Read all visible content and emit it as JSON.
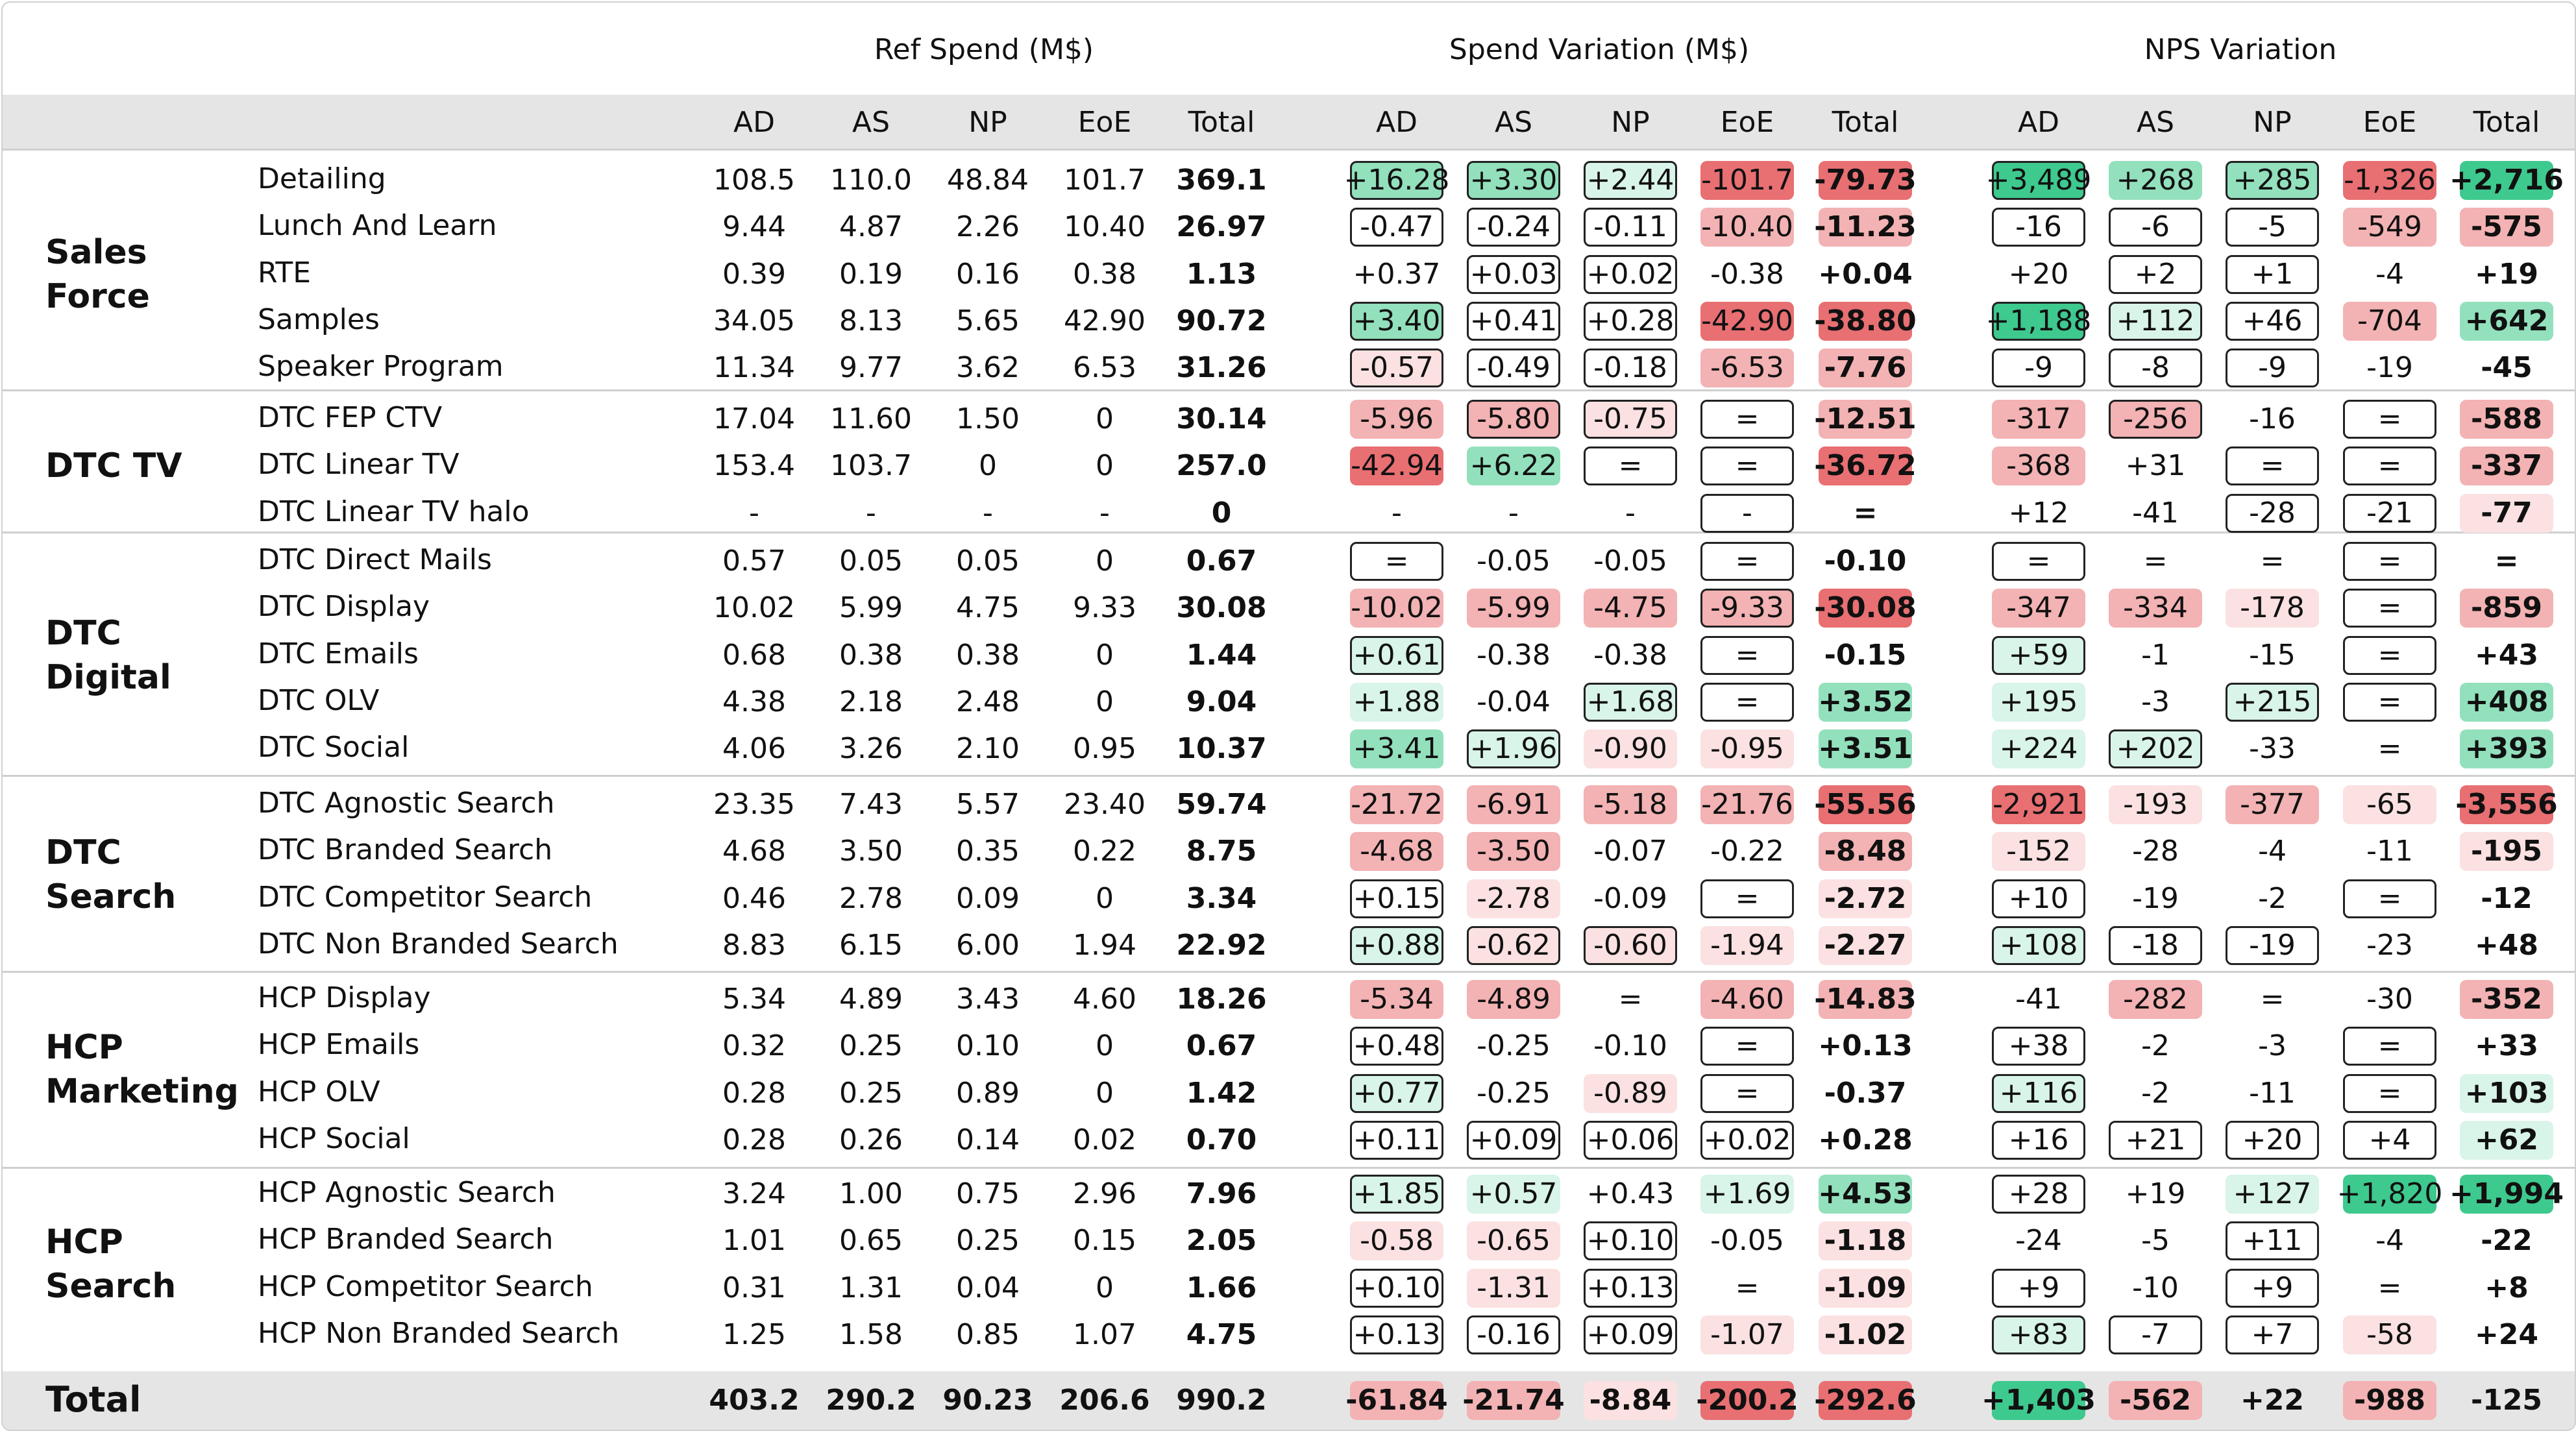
{
  "chart_data": {
    "type": "table",
    "group_headers": [
      "Ref Spend (M$)",
      "Spend Variation (M$)",
      "NPS Variation"
    ],
    "column_headers": [
      "AD",
      "AS",
      "NP",
      "EoE",
      "Total"
    ],
    "groups": [
      {
        "name": "Sales Force",
        "lines": [
          "Sales",
          "Force"
        ],
        "rows": [
          {
            "channel": "Detailing",
            "ref": [
              "108.5",
              "110.0",
              "48.84",
              "101.7",
              "369.1"
            ],
            "spend": [
              "+16.28",
              "+3.30",
              "+2.44",
              "-101.7",
              "-79.73"
            ],
            "nps": [
              "+3,489",
              "+268",
              "+285",
              "-1,326",
              "+2,716"
            ]
          },
          {
            "channel": "Lunch And Learn",
            "ref": [
              "9.44",
              "4.87",
              "2.26",
              "10.40",
              "26.97"
            ],
            "spend": [
              "-0.47",
              "-0.24",
              "-0.11",
              "-10.40",
              "-11.23"
            ],
            "nps": [
              "-16",
              "-6",
              "-5",
              "-549",
              "-575"
            ]
          },
          {
            "channel": "RTE",
            "ref": [
              "0.39",
              "0.19",
              "0.16",
              "0.38",
              "1.13"
            ],
            "spend": [
              "+0.37",
              "+0.03",
              "+0.02",
              "-0.38",
              "+0.04"
            ],
            "nps": [
              "+20",
              "+2",
              "+1",
              "-4",
              "+19"
            ]
          },
          {
            "channel": "Samples",
            "ref": [
              "34.05",
              "8.13",
              "5.65",
              "42.90",
              "90.72"
            ],
            "spend": [
              "+3.40",
              "+0.41",
              "+0.28",
              "-42.90",
              "-38.80"
            ],
            "nps": [
              "+1,188",
              "+112",
              "+46",
              "-704",
              "+642"
            ]
          },
          {
            "channel": "Speaker Program",
            "ref": [
              "11.34",
              "9.77",
              "3.62",
              "6.53",
              "31.26"
            ],
            "spend": [
              "-0.57",
              "-0.49",
              "-0.18",
              "-6.53",
              "-7.76"
            ],
            "nps": [
              "-9",
              "-8",
              "-9",
              "-19",
              "-45"
            ]
          }
        ]
      },
      {
        "name": "DTC TV",
        "lines": [
          "DTC TV"
        ],
        "rows": [
          {
            "channel": "DTC FEP CTV",
            "ref": [
              "17.04",
              "11.60",
              "1.50",
              "0",
              "30.14"
            ],
            "spend": [
              "-5.96",
              "-5.80",
              "-0.75",
              "=",
              "-12.51"
            ],
            "nps": [
              "-317",
              "-256",
              "-16",
              "=",
              "-588"
            ]
          },
          {
            "channel": "DTC Linear TV",
            "ref": [
              "153.4",
              "103.7",
              "0",
              "0",
              "257.0"
            ],
            "spend": [
              "-42.94",
              "+6.22",
              "=",
              "=",
              "-36.72"
            ],
            "nps": [
              "-368",
              "+31",
              "=",
              "=",
              "-337"
            ]
          },
          {
            "channel": "DTC Linear TV halo",
            "ref": [
              "-",
              "-",
              "-",
              "-",
              "0"
            ],
            "spend": [
              "-",
              "-",
              "-",
              "-",
              "="
            ],
            "nps": [
              "+12",
              "-41",
              "-28",
              "-21",
              "-77"
            ]
          }
        ]
      },
      {
        "name": "DTC Digital",
        "lines": [
          "DTC",
          "Digital"
        ],
        "rows": [
          {
            "channel": "DTC Direct Mails",
            "ref": [
              "0.57",
              "0.05",
              "0.05",
              "0",
              "0.67"
            ],
            "spend": [
              "=",
              "-0.05",
              "-0.05",
              "=",
              "-0.10"
            ],
            "nps": [
              "=",
              "=",
              "=",
              "=",
              "="
            ]
          },
          {
            "channel": "DTC Display",
            "ref": [
              "10.02",
              "5.99",
              "4.75",
              "9.33",
              "30.08"
            ],
            "spend": [
              "-10.02",
              "-5.99",
              "-4.75",
              "-9.33",
              "-30.08"
            ],
            "nps": [
              "-347",
              "-334",
              "-178",
              "=",
              "-859"
            ]
          },
          {
            "channel": "DTC Emails",
            "ref": [
              "0.68",
              "0.38",
              "0.38",
              "0",
              "1.44"
            ],
            "spend": [
              "+0.61",
              "-0.38",
              "-0.38",
              "=",
              "-0.15"
            ],
            "nps": [
              "+59",
              "-1",
              "-15",
              "=",
              "+43"
            ]
          },
          {
            "channel": "DTC OLV",
            "ref": [
              "4.38",
              "2.18",
              "2.48",
              "0",
              "9.04"
            ],
            "spend": [
              "+1.88",
              "-0.04",
              "+1.68",
              "=",
              "+3.52"
            ],
            "nps": [
              "+195",
              "-3",
              "+215",
              "=",
              "+408"
            ]
          },
          {
            "channel": "DTC Social",
            "ref": [
              "4.06",
              "3.26",
              "2.10",
              "0.95",
              "10.37"
            ],
            "spend": [
              "+3.41",
              "+1.96",
              "-0.90",
              "-0.95",
              "+3.51"
            ],
            "nps": [
              "+224",
              "+202",
              "-33",
              "=",
              "+393"
            ]
          }
        ]
      },
      {
        "name": "DTC Search",
        "lines": [
          "DTC",
          "Search"
        ],
        "rows": [
          {
            "channel": "DTC Agnostic Search",
            "ref": [
              "23.35",
              "7.43",
              "5.57",
              "23.40",
              "59.74"
            ],
            "spend": [
              "-21.72",
              "-6.91",
              "-5.18",
              "-21.76",
              "-55.56"
            ],
            "nps": [
              "-2,921",
              "-193",
              "-377",
              "-65",
              "-3,556"
            ]
          },
          {
            "channel": "DTC Branded Search",
            "ref": [
              "4.68",
              "3.50",
              "0.35",
              "0.22",
              "8.75"
            ],
            "spend": [
              "-4.68",
              "-3.50",
              "-0.07",
              "-0.22",
              "-8.48"
            ],
            "nps": [
              "-152",
              "-28",
              "-4",
              "-11",
              "-195"
            ]
          },
          {
            "channel": "DTC Competitor Search",
            "ref": [
              "0.46",
              "2.78",
              "0.09",
              "0",
              "3.34"
            ],
            "spend": [
              "+0.15",
              "-2.78",
              "-0.09",
              "=",
              "-2.72"
            ],
            "nps": [
              "+10",
              "-19",
              "-2",
              "=",
              "-12"
            ]
          },
          {
            "channel": "DTC Non Branded Search",
            "ref": [
              "8.83",
              "6.15",
              "6.00",
              "1.94",
              "22.92"
            ],
            "spend": [
              "+0.88",
              "-0.62",
              "-0.60",
              "-1.94",
              "-2.27"
            ],
            "nps": [
              "+108",
              "-18",
              "-19",
              "-23",
              "+48"
            ]
          }
        ]
      },
      {
        "name": "HCP Marketing",
        "lines": [
          "HCP",
          "Marketing"
        ],
        "rows": [
          {
            "channel": "HCP Display",
            "ref": [
              "5.34",
              "4.89",
              "3.43",
              "4.60",
              "18.26"
            ],
            "spend": [
              "-5.34",
              "-4.89",
              "=",
              "-4.60",
              "-14.83"
            ],
            "nps": [
              "-41",
              "-282",
              "=",
              "-30",
              "-352"
            ]
          },
          {
            "channel": "HCP Emails",
            "ref": [
              "0.32",
              "0.25",
              "0.10",
              "0",
              "0.67"
            ],
            "spend": [
              "+0.48",
              "-0.25",
              "-0.10",
              "=",
              "+0.13"
            ],
            "nps": [
              "+38",
              "-2",
              "-3",
              "=",
              "+33"
            ]
          },
          {
            "channel": "HCP OLV",
            "ref": [
              "0.28",
              "0.25",
              "0.89",
              "0",
              "1.42"
            ],
            "spend": [
              "+0.77",
              "-0.25",
              "-0.89",
              "=",
              "-0.37"
            ],
            "nps": [
              "+116",
              "-2",
              "-11",
              "=",
              "+103"
            ]
          },
          {
            "channel": "HCP Social",
            "ref": [
              "0.28",
              "0.26",
              "0.14",
              "0.02",
              "0.70"
            ],
            "spend": [
              "+0.11",
              "+0.09",
              "+0.06",
              "+0.02",
              "+0.28"
            ],
            "nps": [
              "+16",
              "+21",
              "+20",
              "+4",
              "+62"
            ]
          }
        ]
      },
      {
        "name": "HCP Search",
        "lines": [
          "HCP",
          "Search"
        ],
        "rows": [
          {
            "channel": "HCP Agnostic Search",
            "ref": [
              "3.24",
              "1.00",
              "0.75",
              "2.96",
              "7.96"
            ],
            "spend": [
              "+1.85",
              "+0.57",
              "+0.43",
              "+1.69",
              "+4.53"
            ],
            "nps": [
              "+28",
              "+19",
              "+127",
              "+1,820",
              "+1,994"
            ]
          },
          {
            "channel": "HCP Branded Search",
            "ref": [
              "1.01",
              "0.65",
              "0.25",
              "0.15",
              "2.05"
            ],
            "spend": [
              "-0.58",
              "-0.65",
              "+0.10",
              "-0.05",
              "-1.18"
            ],
            "nps": [
              "-24",
              "-5",
              "+11",
              "-4",
              "-22"
            ]
          },
          {
            "channel": "HCP Competitor Search",
            "ref": [
              "0.31",
              "1.31",
              "0.04",
              "0",
              "1.66"
            ],
            "spend": [
              "+0.10",
              "-1.31",
              "+0.13",
              "=",
              "-1.09"
            ],
            "nps": [
              "+9",
              "-10",
              "+9",
              "=",
              "+8"
            ]
          },
          {
            "channel": "HCP Non Branded Search",
            "ref": [
              "1.25",
              "1.58",
              "0.85",
              "1.07",
              "4.75"
            ],
            "spend": [
              "+0.13",
              "-0.16",
              "+0.09",
              "-1.07",
              "-1.02"
            ],
            "nps": [
              "+83",
              "-7",
              "+7",
              "-58",
              "+24"
            ]
          }
        ]
      }
    ],
    "total": {
      "label": "Total",
      "ref": [
        "403.2",
        "290.2",
        "90.23",
        "206.6",
        "990.2"
      ],
      "spend": [
        "-61.84",
        "-21.74",
        "-8.84",
        "-200.2",
        "-292.6"
      ],
      "nps": [
        "+1,403",
        "-562",
        "+22",
        "-988",
        "-125"
      ]
    },
    "outlined_cells": {
      "spend": [
        [
          [
            0,
            0
          ],
          [
            1,
            0
          ],
          [
            2,
            0
          ],
          [
            3,
            0
          ],
          [
            4,
            0
          ]
        ],
        [
          [
            0,
            1
          ],
          [
            1,
            1
          ],
          [
            2,
            1
          ],
          [
            3,
            1
          ],
          [
            4,
            1
          ]
        ],
        [
          [
            0,
            2
          ],
          [
            1,
            2
          ],
          [
            2,
            2
          ],
          [
            3,
            2
          ],
          [
            4,
            2
          ]
        ],
        [
          [
            0,
            3
          ],
          [
            1,
            3
          ],
          [
            2,
            3
          ],
          [
            3,
            3
          ],
          [
            4,
            3
          ]
        ],
        [
          [
            0,
            0
          ],
          [
            0,
            3
          ],
          [
            1,
            0
          ],
          [
            2,
            0
          ],
          [
            3,
            0
          ]
        ],
        [
          [
            0,
            0
          ],
          [
            1,
            0
          ],
          [
            2,
            0
          ],
          [
            3,
            0
          ],
          [
            4,
            0
          ]
        ]
      ]
    },
    "colors": {
      "pos_strong": "#3ec98e",
      "pos_mid": "#93e0bd",
      "pos_light": "#d9f4e8",
      "neg_strong": "#e86f72",
      "neg_mid": "#f3b2b3",
      "neg_light": "#fbe1e1",
      "band": "#e5e5e5",
      "outline": "#222222"
    }
  }
}
